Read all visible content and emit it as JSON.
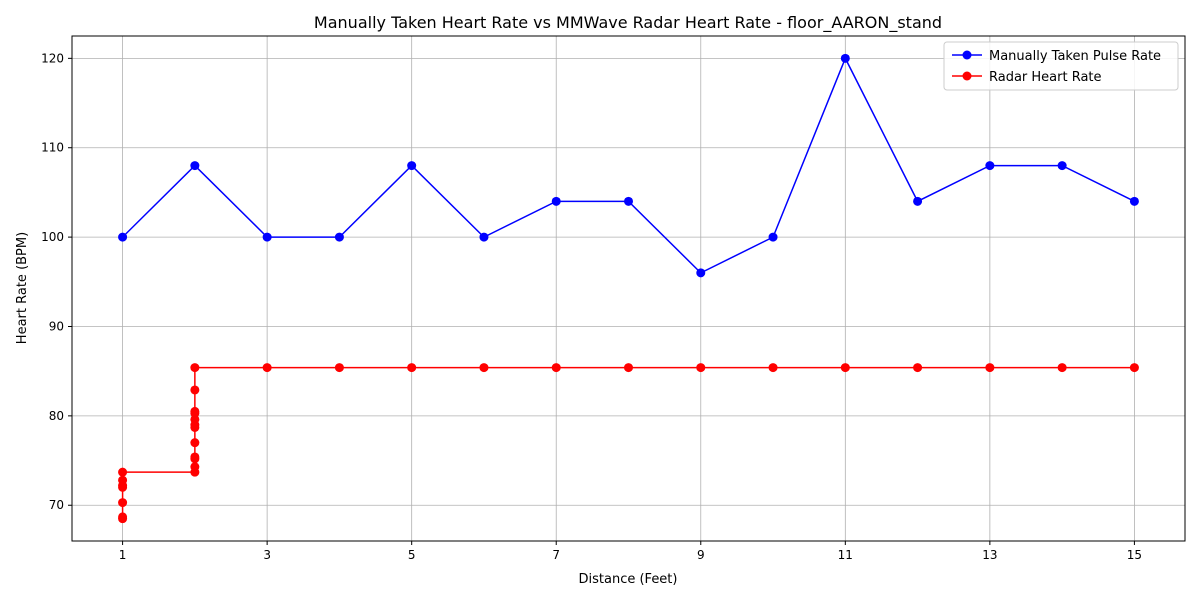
{
  "chart_data": {
    "type": "line",
    "title": "Manually Taken Heart Rate vs MMWave Radar Heart Rate - floor_AARON_stand",
    "xlabel": "Distance (Feet)",
    "ylabel": "Heart Rate (BPM)",
    "xlim": [
      0.3,
      15.7
    ],
    "ylim": [
      66,
      122.5
    ],
    "xticks": [
      1,
      3,
      5,
      7,
      9,
      11,
      13,
      15
    ],
    "yticks": [
      70,
      80,
      90,
      100,
      110,
      120
    ],
    "grid": true,
    "legend_position": "top-right",
    "series": [
      {
        "name": "Manually Taken Pulse Rate",
        "color": "#0000ff",
        "points": [
          [
            1,
            100
          ],
          [
            2,
            108
          ],
          [
            3,
            100
          ],
          [
            4,
            100
          ],
          [
            5,
            108
          ],
          [
            6,
            100
          ],
          [
            7,
            104
          ],
          [
            8,
            104
          ],
          [
            9,
            96
          ],
          [
            10,
            100
          ],
          [
            11,
            120
          ],
          [
            12,
            104
          ],
          [
            13,
            108
          ],
          [
            14,
            108
          ],
          [
            15,
            104
          ]
        ]
      },
      {
        "name": "Radar Heart Rate",
        "color": "#ff0000",
        "points": [
          [
            1,
            68.5
          ],
          [
            1,
            68.7
          ],
          [
            1,
            70.3
          ],
          [
            1,
            72.0
          ],
          [
            1,
            72.2
          ],
          [
            1,
            72.8
          ],
          [
            1,
            73.7
          ],
          [
            2,
            73.7
          ],
          [
            2,
            74.3
          ],
          [
            2,
            75.2
          ],
          [
            2,
            75.4
          ],
          [
            2,
            77.0
          ],
          [
            2,
            78.7
          ],
          [
            2,
            79.0
          ],
          [
            2,
            79.6
          ],
          [
            2,
            80.3
          ],
          [
            2,
            80.5
          ],
          [
            2,
            82.9
          ],
          [
            2,
            85.4
          ],
          [
            3,
            85.4
          ],
          [
            4,
            85.4
          ],
          [
            5,
            85.4
          ],
          [
            6,
            85.4
          ],
          [
            7,
            85.4
          ],
          [
            8,
            85.4
          ],
          [
            9,
            85.4
          ],
          [
            10,
            85.4
          ],
          [
            11,
            85.4
          ],
          [
            12,
            85.4
          ],
          [
            13,
            85.4
          ],
          [
            14,
            85.4
          ],
          [
            15,
            85.4
          ]
        ]
      }
    ]
  }
}
